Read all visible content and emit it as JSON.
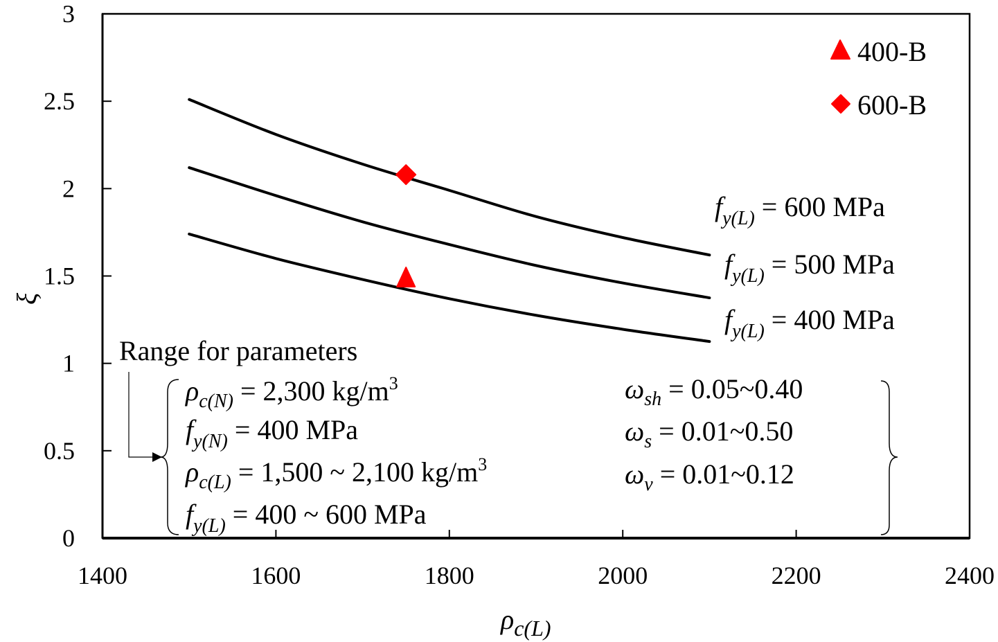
{
  "chart_data": {
    "type": "line",
    "title": "",
    "xlabel": "ρc(L)",
    "xlabel_main": "ρ",
    "xlabel_sub": "c(L)",
    "ylabel": "ξ",
    "xlim": [
      1400,
      2400
    ],
    "ylim": [
      0,
      3
    ],
    "x_ticks": [
      1400,
      1600,
      1800,
      2000,
      2200,
      2400
    ],
    "x_tick_labels": [
      "1400",
      "1600",
      "1800",
      "2000",
      "2200",
      "2400"
    ],
    "y_ticks": [
      0,
      0.5,
      1,
      1.5,
      2,
      2.5,
      3
    ],
    "y_tick_labels": [
      "0",
      "0.5",
      "1",
      "1.5",
      "2",
      "2.5",
      "3"
    ],
    "grid": false,
    "x": [
      1500,
      1600,
      1700,
      1800,
      1900,
      2000,
      2100
    ],
    "series": [
      {
        "name": "fy(L) = 600 MPa",
        "label_main": "f",
        "label_sub": "y(L)",
        "label_rest": " = 600 MPa",
        "values": [
          2.51,
          2.31,
          2.14,
          1.99,
          1.84,
          1.72,
          1.62
        ],
        "color": "#000000"
      },
      {
        "name": "fy(L) = 500 MPa",
        "label_main": "f",
        "label_sub": "y(L)",
        "label_rest": " = 500 MPa",
        "values": [
          2.12,
          1.96,
          1.81,
          1.68,
          1.56,
          1.46,
          1.375
        ],
        "color": "#000000"
      },
      {
        "name": "fy(L) = 400 MPa",
        "label_main": "f",
        "label_sub": "y(L)",
        "label_rest": " = 400 MPa",
        "values": [
          1.74,
          1.6,
          1.48,
          1.37,
          1.275,
          1.195,
          1.125
        ],
        "color": "#000000"
      }
    ],
    "points": [
      {
        "name": "400-B",
        "marker": "triangle",
        "x": 1750,
        "y": 1.49,
        "color": "#ff0000"
      },
      {
        "name": "600-B",
        "marker": "diamond",
        "x": 1750,
        "y": 2.08,
        "color": "#ff0000"
      }
    ],
    "legend": {
      "position": "top-right",
      "entries": [
        "400-B",
        "600-B"
      ]
    },
    "annotations": {
      "range_title": "Range for parameters",
      "left_params": [
        {
          "sym": "ρ",
          "sub": "c(N)",
          "value": " = 2,300 kg/m",
          "sup": "3"
        },
        {
          "sym": "f",
          "sub": "y(N)",
          "value": " = 400 MPa",
          "sup": ""
        },
        {
          "sym": "ρ",
          "sub": "c(L)",
          "value": " = 1,500 ~ 2,100 kg/m",
          "sup": "3"
        },
        {
          "sym": "f",
          "sub": "y(L)",
          "value": " = 400 ~ 600 MPa",
          "sup": ""
        }
      ],
      "right_params": [
        {
          "sym": "ω",
          "sub": "sh",
          "value": " = 0.05~0.40"
        },
        {
          "sym": "ω",
          "sub": "s",
          "value": " = 0.01~0.50"
        },
        {
          "sym": "ω",
          "sub": "v",
          "value": " = 0.01~0.12"
        }
      ]
    }
  }
}
